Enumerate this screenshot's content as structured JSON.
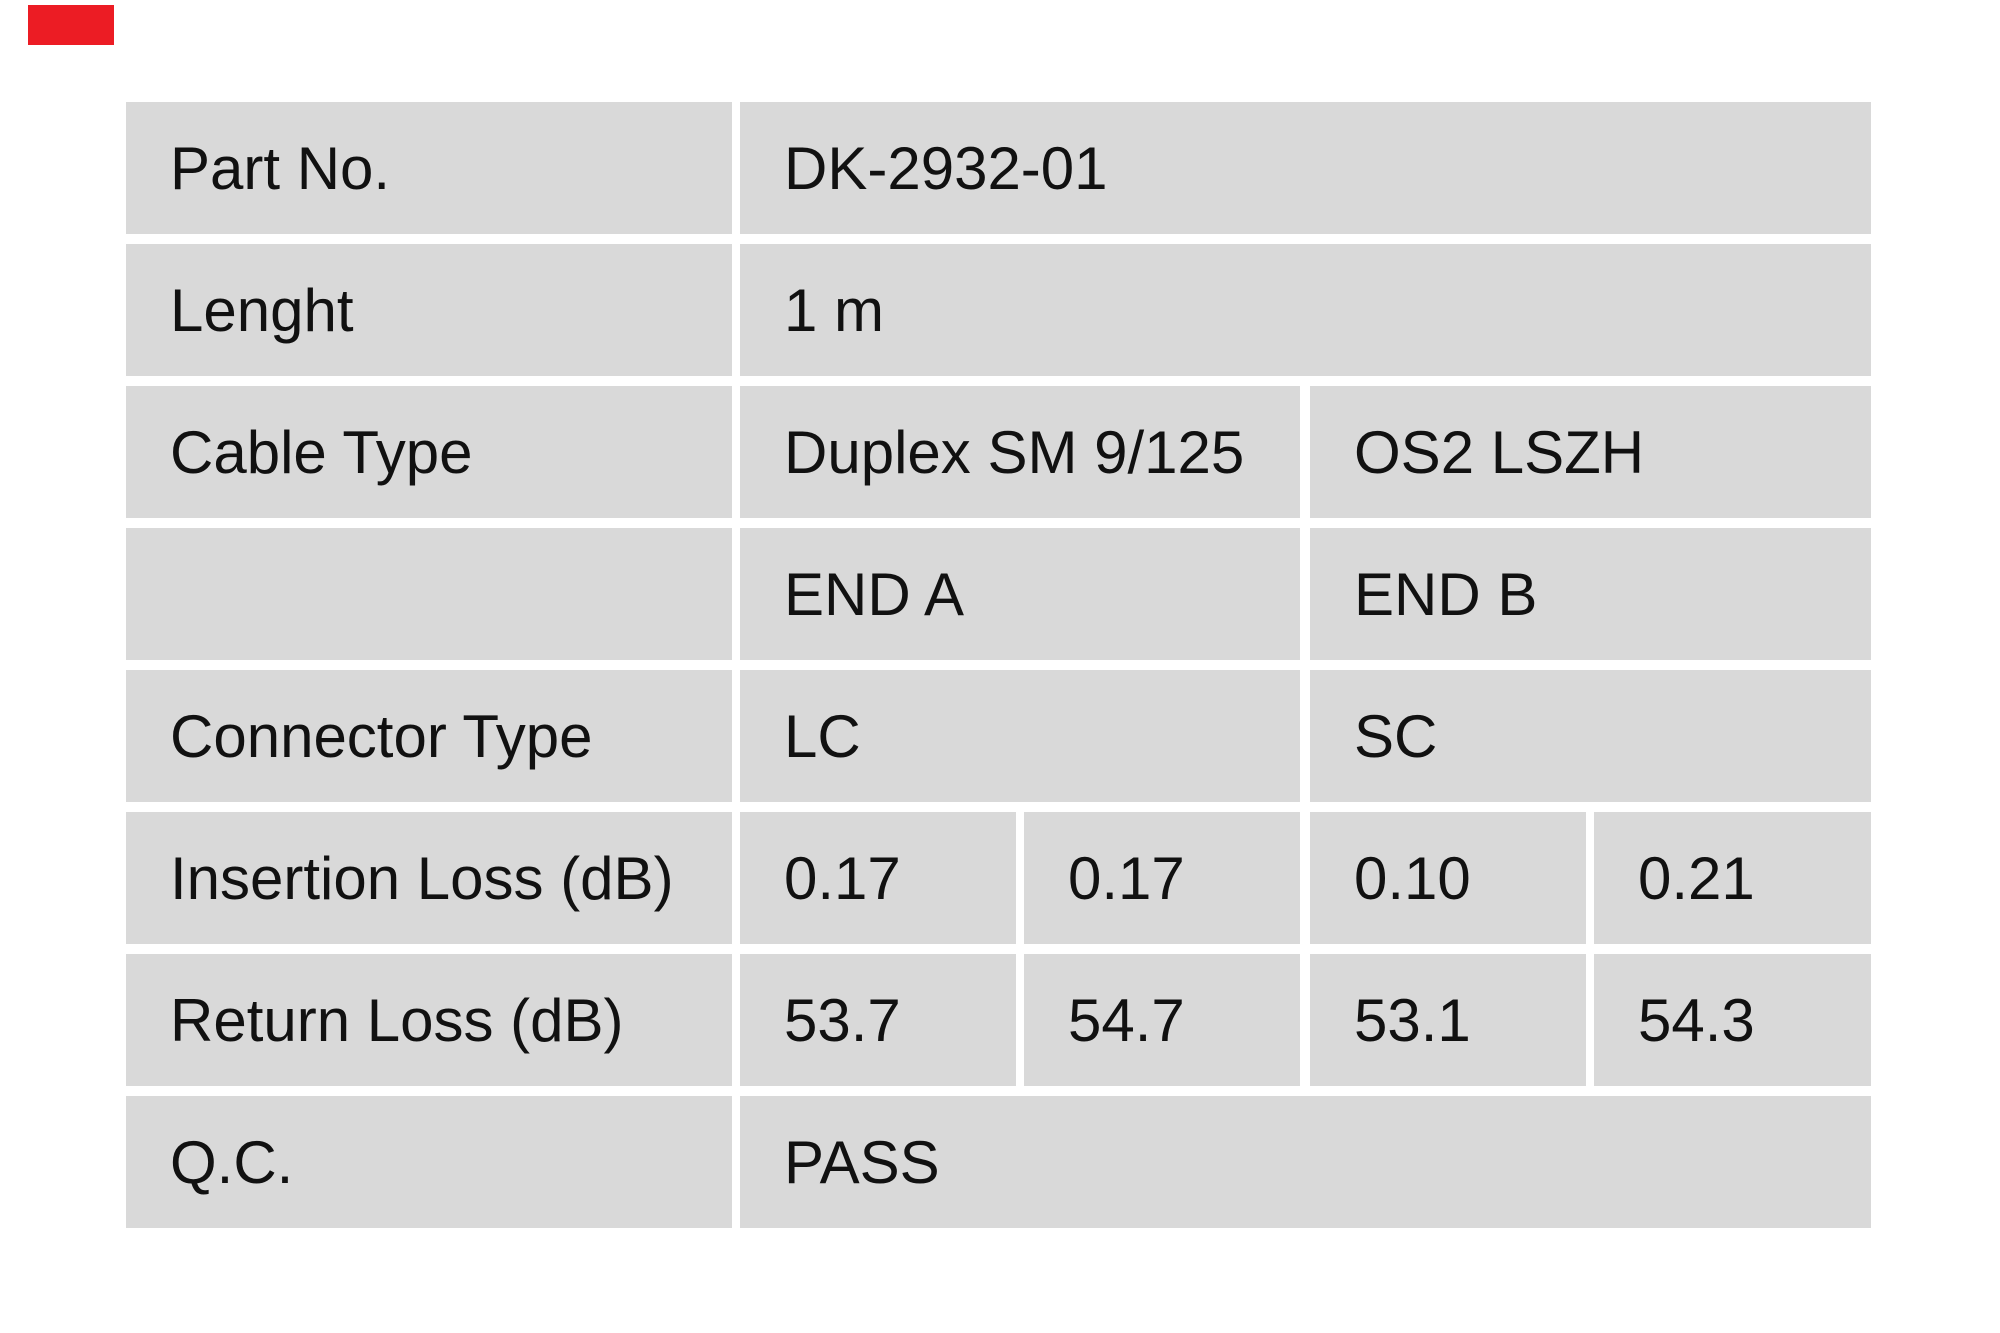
{
  "page": {
    "background_color": "#ffffff"
  },
  "logo_mark": {
    "color": "#ec1c24"
  },
  "table": {
    "cell_background": "#d9d9d9",
    "text_color": "#111111",
    "rows": [
      {
        "label": "Part No.",
        "cells": [
          {
            "text": "DK-2932-01"
          }
        ]
      },
      {
        "label": "Lenght",
        "cells": [
          {
            "text": "1 m"
          }
        ]
      },
      {
        "label": "Cable Type",
        "cells": [
          {
            "text": "Duplex SM 9/125"
          },
          {
            "text": "OS2 LSZH"
          }
        ]
      },
      {
        "label": "",
        "cells": [
          {
            "text": "END A"
          },
          {
            "text": "END B"
          }
        ]
      },
      {
        "label": "Connector Type",
        "cells": [
          {
            "text": "LC"
          },
          {
            "text": "SC"
          }
        ]
      },
      {
        "label": "Insertion Loss (dB)",
        "cells": [
          {
            "text": "0.17"
          },
          {
            "text": "0.17"
          },
          {
            "text": "0.10"
          },
          {
            "text": "0.21"
          }
        ]
      },
      {
        "label": "Return Loss (dB)",
        "cells": [
          {
            "text": "53.7"
          },
          {
            "text": "54.7"
          },
          {
            "text": "53.1"
          },
          {
            "text": "54.3"
          }
        ]
      },
      {
        "label": "Q.C.",
        "cells": [
          {
            "text": "PASS"
          }
        ]
      }
    ]
  }
}
